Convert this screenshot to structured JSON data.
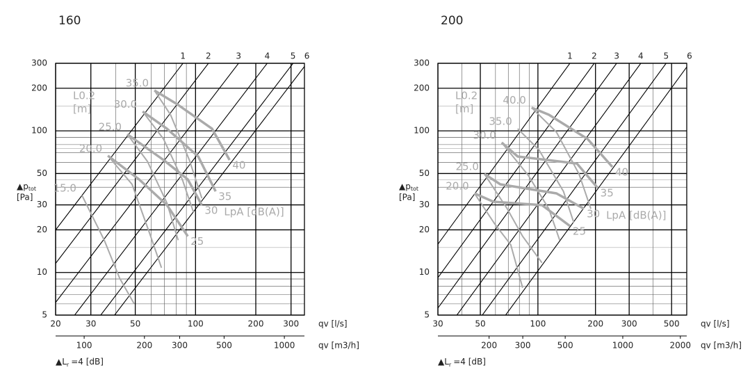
{
  "chart_data": [
    {
      "type": "line",
      "title": "160",
      "xlabel": "qv [l/s]",
      "x2label": "qv [m3/h]",
      "ylabel": "▲p",
      "ylabel_sub": "tot",
      "yunit": "[Pa]",
      "note": "▲L",
      "note_sub": "r",
      "note_rest": "=4 [dB]",
      "xscale": "log",
      "yscale": "log",
      "grid": true,
      "xlim": [
        20,
        350
      ],
      "ylim": [
        5,
        300
      ],
      "x2lim": [
        72,
        1260
      ],
      "xticks": [
        20,
        30,
        50,
        100,
        200,
        300
      ],
      "yticks": [
        5,
        10,
        20,
        30,
        50,
        100,
        200,
        300
      ],
      "x2ticks": [
        100,
        200,
        300,
        500,
        1000
      ],
      "throw_label": "L0.2",
      "throw_unit": "[m]",
      "sound_label": "LpA [dB(A)]",
      "guide_color": "#000000",
      "curve_color": "#aaaaaa",
      "guide_lines": [
        {
          "name": "1",
          "x": [
            9.46,
            86.5
          ],
          "values": [
            5,
            300
          ]
        },
        {
          "name": "2",
          "x": [
            12.7,
            116
          ],
          "values": [
            5,
            300
          ]
        },
        {
          "name": "3",
          "x": [
            17.9,
            164
          ],
          "values": [
            5,
            300
          ]
        },
        {
          "name": "4",
          "x": [
            24.9,
            228
          ],
          "values": [
            5,
            300
          ]
        },
        {
          "name": "5",
          "x": [
            33.6,
            307
          ],
          "values": [
            5,
            300
          ]
        },
        {
          "name": "6",
          "x": [
            39.4,
            360
          ],
          "values": [
            5,
            300
          ]
        }
      ],
      "throw_curves": [
        {
          "name": "15.0",
          "x": [
            27.1,
            35.0,
            41.8,
            49.4
          ],
          "values": [
            35.0,
            16.9,
            9.1,
            6.0
          ]
        },
        {
          "name": "20.0",
          "x": [
            36.5,
            48.2,
            58.9,
            67.6
          ],
          "values": [
            66.7,
            41.9,
            19.0,
            10.8
          ]
        },
        {
          "name": "25.0",
          "x": [
            45.6,
            57.5,
            72.0,
            81.9
          ],
          "values": [
            94.6,
            60.9,
            30.9,
            16.9
          ]
        },
        {
          "name": "30.0",
          "x": [
            54.4,
            69.2,
            85.9,
            97.6
          ],
          "values": [
            137,
            87.5,
            45.4,
            26.7
          ]
        },
        {
          "name": "35.0",
          "x": [
            62.3,
            75.0,
            93.1,
            107.5
          ],
          "values": [
            193,
            130,
            62.3,
            33.4
          ]
        }
      ],
      "sound_curves": [
        {
          "name": "25",
          "x": [
            36.5,
            52.3,
            72.0,
            91.5
          ],
          "values": [
            66.7,
            45.4,
            29.9,
            18.0
          ]
        },
        {
          "name": "30",
          "x": [
            45.6,
            69.2,
            91.5,
            107.5
          ],
          "values": [
            94.6,
            62.3,
            45.4,
            29.9
          ]
        },
        {
          "name": "35",
          "x": [
            54.4,
            72.0,
            103.2,
            126
          ],
          "values": [
            137,
            103.5,
            65.9,
            37.4
          ]
        },
        {
          "name": "40",
          "x": [
            62.3,
            81.1,
            121,
            148
          ],
          "values": [
            193,
            154,
            103.5,
            62.3
          ]
        }
      ]
    },
    {
      "type": "line",
      "title": "200",
      "xlabel": "qv [l/s]",
      "x2label": "qv [m3/h]",
      "ylabel": "▲p",
      "ylabel_sub": "tot",
      "yunit": "[Pa]",
      "note": "▲L",
      "note_sub": "r",
      "note_rest": "=4 [dB]",
      "xscale": "log",
      "yscale": "log",
      "grid": true,
      "xlim": [
        30,
        600
      ],
      "ylim": [
        5,
        300
      ],
      "x2lim": [
        108,
        2160
      ],
      "xticks": [
        30,
        50,
        100,
        200,
        300,
        500
      ],
      "yticks": [
        5,
        10,
        20,
        30,
        50,
        100,
        200,
        300
      ],
      "x2ticks": [
        200,
        300,
        500,
        1000,
        2000
      ],
      "throw_label": "L0.2",
      "throw_unit": "[m]",
      "sound_label": "LpA [dB(A)]",
      "guide_color": "#000000",
      "curve_color": "#aaaaaa",
      "guide_lines": [
        {
          "name": "1",
          "x": [
            16.1,
            147
          ],
          "values": [
            5,
            300
          ]
        },
        {
          "name": "2",
          "x": [
            21.6,
            197
          ],
          "values": [
            5,
            300
          ]
        },
        {
          "name": "3",
          "x": [
            28.2,
            258
          ],
          "values": [
            5,
            300
          ]
        },
        {
          "name": "4",
          "x": [
            37.7,
            345
          ],
          "values": [
            5,
            300
          ]
        },
        {
          "name": "5",
          "x": [
            51.2,
            468
          ],
          "values": [
            5,
            300
          ]
        },
        {
          "name": "6",
          "x": [
            67.8,
            620
          ],
          "values": [
            5,
            300
          ]
        }
      ],
      "throw_curves": [
        {
          "name": "20.0",
          "x": [
            46.6,
            59.5,
            72.1,
            83.2
          ],
          "values": [
            36.2,
            22.0,
            15.7,
            7.8
          ]
        },
        {
          "name": "25.0",
          "x": [
            52.5,
            69.1,
            83.2,
            105
          ],
          "values": [
            49.6,
            28.2,
            18.0,
            11.7
          ]
        },
        {
          "name": "30.0",
          "x": [
            64.7,
            89.0,
            114,
            130
          ],
          "values": [
            82.6,
            48.5,
            28.2,
            16.9
          ]
        },
        {
          "name": "35.0",
          "x": [
            78.4,
            101,
            136,
            154
          ],
          "values": [
            103.5,
            73.8,
            37.4,
            22.5
          ]
        },
        {
          "name": "40.0",
          "x": [
            92.7,
            125,
            164,
            189
          ],
          "values": [
            146,
            98.0,
            49.6,
            28.2
          ]
        }
      ],
      "sound_curves": [
        {
          "name": "25",
          "x": [
            46.6,
            58.5,
            105,
            147
          ],
          "values": [
            36.2,
            31.6,
            29.9,
            21.3
          ]
        },
        {
          "name": "30",
          "x": [
            52.5,
            63.6,
            125,
            174
          ],
          "values": [
            49.6,
            41.9,
            36.2,
            28.2
          ]
        },
        {
          "name": "35",
          "x": [
            64.7,
            78.4,
            160,
            205
          ],
          "values": [
            82.6,
            65.9,
            58.8,
            39.6
          ]
        },
        {
          "name": "40",
          "x": [
            92.7,
            114,
            182,
            245
          ],
          "values": [
            146,
            130,
            87.5,
            55.6
          ]
        }
      ]
    }
  ]
}
